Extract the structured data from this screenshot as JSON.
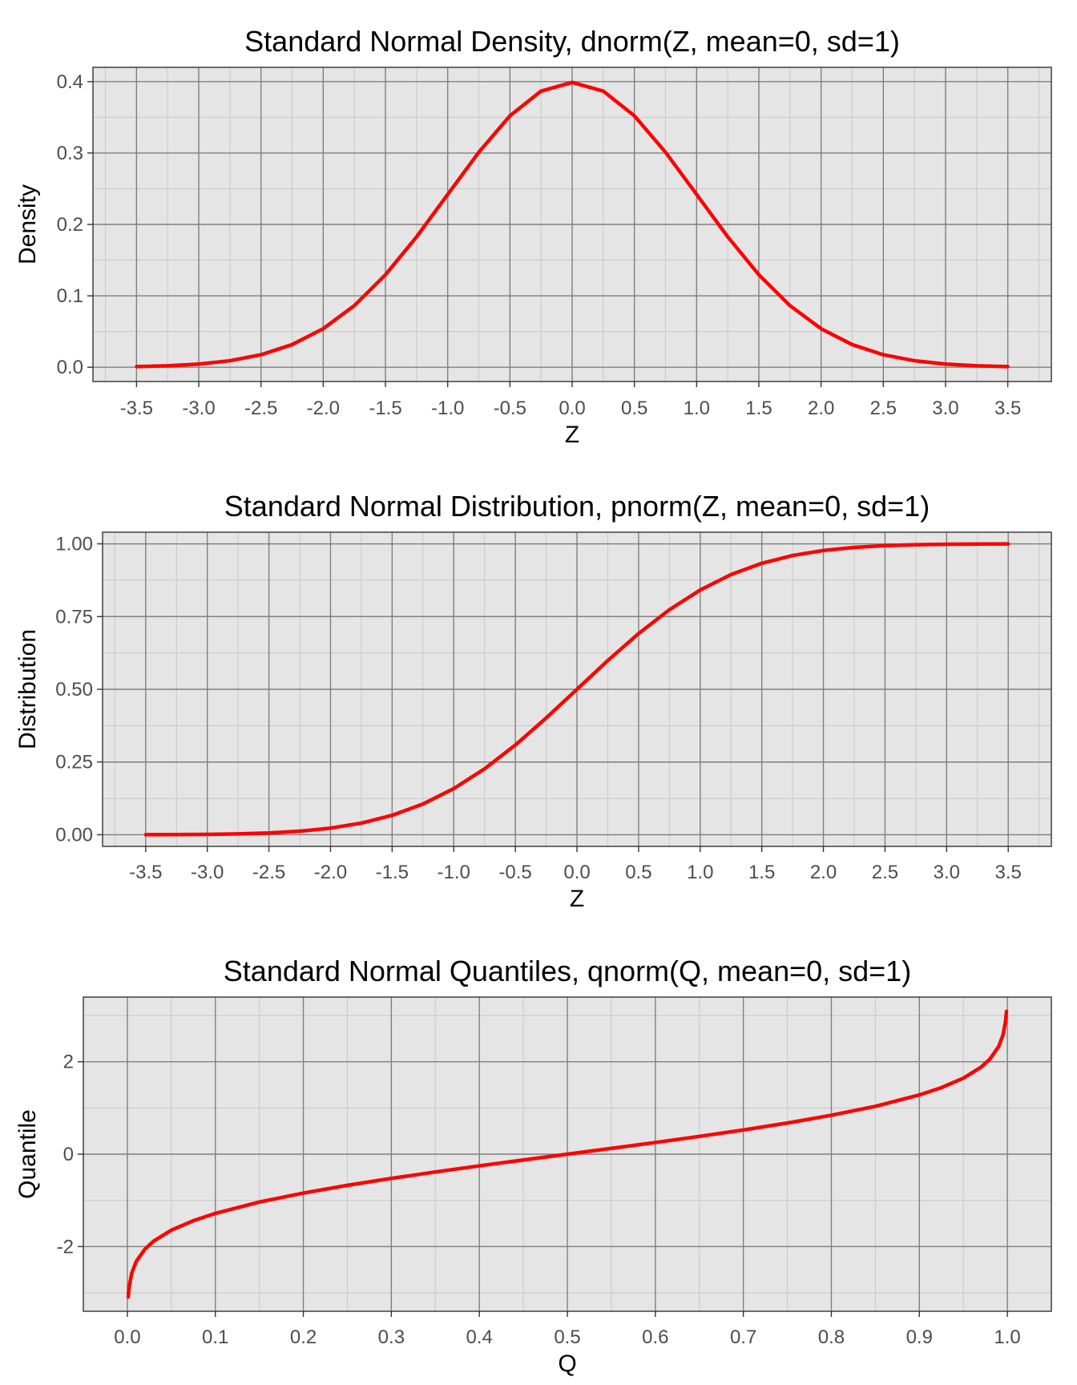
{
  "colors": {
    "panel_background": "#e5e5e5",
    "major_grid": "#7f7f7f",
    "minor_grid": "#c8c8c8",
    "line": "#ff0000",
    "tick_text": "#4d4d4d"
  },
  "chart_data": [
    {
      "type": "line",
      "title": "Standard Normal Density, dnorm(Z, mean=0, sd=1)",
      "xlabel": "Z",
      "ylabel": "Density",
      "xlim": [
        -3.85,
        3.85
      ],
      "ylim": [
        -0.02,
        0.42
      ],
      "x_ticks": [
        -3.5,
        -3.0,
        -2.5,
        -2.0,
        -1.5,
        -1.0,
        -0.5,
        0.0,
        0.5,
        1.0,
        1.5,
        2.0,
        2.5,
        3.0,
        3.5
      ],
      "x_tick_labels": [
        "-3.5",
        "-3.0",
        "-2.5",
        "-2.0",
        "-1.5",
        "-1.0",
        "-0.5",
        "0.0",
        "0.5",
        "1.0",
        "1.5",
        "2.0",
        "2.5",
        "3.0",
        "3.5"
      ],
      "y_ticks": [
        0.0,
        0.1,
        0.2,
        0.3,
        0.4
      ],
      "y_tick_labels": [
        "0.0",
        "0.1",
        "0.2",
        "0.3",
        "0.4"
      ],
      "grid": true,
      "series": [
        {
          "color": "#ff0000",
          "x": [
            -3.5,
            -3.25,
            -3.0,
            -2.75,
            -2.5,
            -2.25,
            -2.0,
            -1.75,
            -1.5,
            -1.25,
            -1.0,
            -0.75,
            -0.5,
            -0.25,
            0.0,
            0.25,
            0.5,
            0.75,
            1.0,
            1.25,
            1.5,
            1.75,
            2.0,
            2.25,
            2.5,
            2.75,
            3.0,
            3.25,
            3.5
          ],
          "y": [
            0.0009,
            0.002,
            0.0044,
            0.0091,
            0.0175,
            0.0317,
            0.054,
            0.0863,
            0.1295,
            0.1826,
            0.242,
            0.3011,
            0.3521,
            0.3867,
            0.3989,
            0.3867,
            0.3521,
            0.3011,
            0.242,
            0.1826,
            0.1295,
            0.0863,
            0.054,
            0.0317,
            0.0175,
            0.0091,
            0.0044,
            0.002,
            0.0009
          ]
        }
      ]
    },
    {
      "type": "line",
      "title": "Standard Normal Distribution, pnorm(Z, mean=0, sd=1)",
      "xlabel": "Z",
      "ylabel": "Distribution",
      "xlim": [
        -3.85,
        3.85
      ],
      "ylim": [
        -0.04,
        1.04
      ],
      "x_ticks": [
        -3.5,
        -3.0,
        -2.5,
        -2.0,
        -1.5,
        -1.0,
        -0.5,
        0.0,
        0.5,
        1.0,
        1.5,
        2.0,
        2.5,
        3.0,
        3.5
      ],
      "x_tick_labels": [
        "-3.5",
        "-3.0",
        "-2.5",
        "-2.0",
        "-1.5",
        "-1.0",
        "-0.5",
        "0.0",
        "0.5",
        "1.0",
        "1.5",
        "2.0",
        "2.5",
        "3.0",
        "3.5"
      ],
      "y_ticks": [
        0.0,
        0.25,
        0.5,
        0.75,
        1.0
      ],
      "y_tick_labels": [
        "0.00",
        "0.25",
        "0.50",
        "0.75",
        "1.00"
      ],
      "grid": true,
      "series": [
        {
          "color": "#ff0000",
          "x": [
            -3.5,
            -3.25,
            -3.0,
            -2.75,
            -2.5,
            -2.25,
            -2.0,
            -1.75,
            -1.5,
            -1.25,
            -1.0,
            -0.75,
            -0.5,
            -0.25,
            0.0,
            0.25,
            0.5,
            0.75,
            1.0,
            1.25,
            1.5,
            1.75,
            2.0,
            2.25,
            2.5,
            2.75,
            3.0,
            3.25,
            3.5
          ],
          "y": [
            0.0002,
            0.0006,
            0.0013,
            0.003,
            0.0062,
            0.0122,
            0.0228,
            0.0401,
            0.0668,
            0.1056,
            0.1587,
            0.2266,
            0.3085,
            0.4013,
            0.5,
            0.5987,
            0.6915,
            0.7734,
            0.8413,
            0.8944,
            0.9332,
            0.9599,
            0.9772,
            0.9878,
            0.9938,
            0.997,
            0.9987,
            0.9994,
            0.9998
          ]
        }
      ]
    },
    {
      "type": "line",
      "title": "Standard Normal Quantiles, qnorm(Q, mean=0, sd=1)",
      "xlabel": "Q",
      "ylabel": "Quantile",
      "xlim": [
        -0.05,
        1.05
      ],
      "ylim": [
        -3.4,
        3.4
      ],
      "x_ticks": [
        0.0,
        0.1,
        0.2,
        0.3,
        0.4,
        0.5,
        0.6,
        0.7,
        0.8,
        0.9,
        1.0
      ],
      "x_tick_labels": [
        "0.0",
        "0.1",
        "0.2",
        "0.3",
        "0.4",
        "0.5",
        "0.6",
        "0.7",
        "0.8",
        "0.9",
        "1.0"
      ],
      "y_ticks": [
        -2,
        0,
        2
      ],
      "y_tick_labels": [
        "-2",
        "0",
        "2"
      ],
      "grid": true,
      "series": [
        {
          "color": "#ff0000",
          "x": [
            0.001,
            0.002,
            0.005,
            0.01,
            0.02,
            0.03,
            0.05,
            0.075,
            0.1,
            0.15,
            0.2,
            0.25,
            0.3,
            0.35,
            0.4,
            0.45,
            0.5,
            0.55,
            0.6,
            0.65,
            0.7,
            0.75,
            0.8,
            0.85,
            0.9,
            0.925,
            0.95,
            0.97,
            0.98,
            0.99,
            0.995,
            0.998,
            0.999
          ],
          "y": [
            -3.09,
            -2.878,
            -2.576,
            -2.326,
            -2.054,
            -1.881,
            -1.645,
            -1.44,
            -1.282,
            -1.036,
            -0.842,
            -0.674,
            -0.524,
            -0.385,
            -0.253,
            -0.126,
            0.0,
            0.126,
            0.253,
            0.385,
            0.524,
            0.674,
            0.842,
            1.036,
            1.282,
            1.44,
            1.645,
            1.881,
            2.054,
            2.326,
            2.576,
            2.878,
            3.09
          ]
        }
      ]
    }
  ]
}
